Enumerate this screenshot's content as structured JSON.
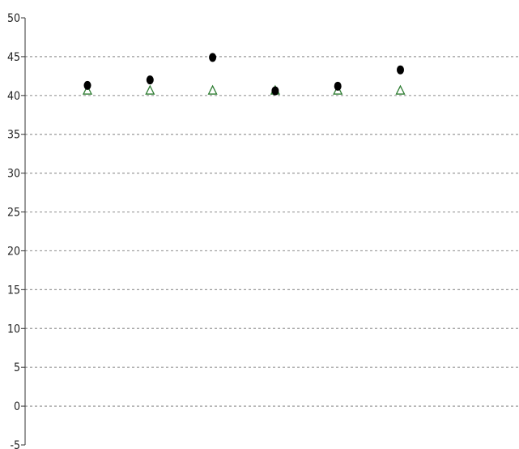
{
  "chart_data": {
    "type": "scatter",
    "title": "",
    "xlabel": "",
    "ylabel": "",
    "ylim": [
      -5,
      50
    ],
    "yticks": [
      -5,
      0,
      5,
      10,
      15,
      20,
      25,
      30,
      35,
      40,
      45,
      50
    ],
    "grid": "horizontal dashed",
    "legend": "none",
    "x": [
      1,
      2,
      3,
      4,
      5,
      6
    ],
    "series": [
      {
        "marker": "filled-circle",
        "color": "#000000",
        "values": [
          41.3,
          42.0,
          44.9,
          40.6,
          41.2,
          43.3
        ]
      },
      {
        "marker": "open-triangle",
        "color": "#2e7d32",
        "values": [
          40.6,
          40.6,
          40.6,
          40.6,
          40.6,
          40.6
        ]
      }
    ]
  }
}
